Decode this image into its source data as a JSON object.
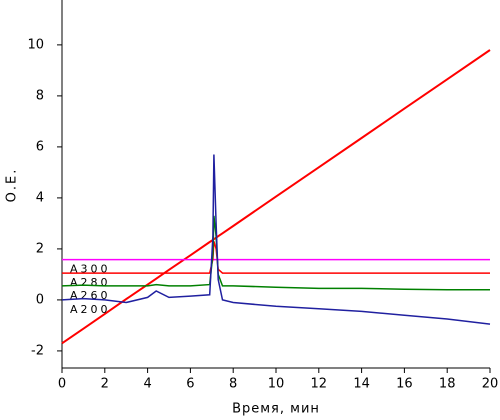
{
  "chart_data": {
    "type": "line",
    "x_label": "Время, мин",
    "y_label": "О.Е.",
    "x": [
      0,
      1,
      2,
      3,
      4,
      4.4,
      5,
      6,
      6.9,
      7.05,
      7.1,
      7.2,
      7.3,
      7.5,
      8,
      10,
      12,
      14,
      16,
      18,
      20
    ],
    "series": [
      {
        "color": "#ff0000",
        "values": [
          -1.7,
          -1.13,
          -0.55,
          0.03,
          0.6,
          0.83,
          1.18,
          1.75,
          2.27,
          2.35,
          2.38,
          2.44,
          2.5,
          2.61,
          2.9,
          4.05,
          5.2,
          6.35,
          7.5,
          8.65,
          9.8
        ]
      },
      {
        "name": "A300",
        "color": "#ff00ff",
        "values": [
          1.58,
          1.58,
          1.58,
          1.58,
          1.58,
          1.58,
          1.58,
          1.58,
          1.58,
          1.58,
          1.58,
          1.58,
          1.58,
          1.58,
          1.58,
          1.58,
          1.58,
          1.58,
          1.58,
          1.58,
          1.58
        ]
      },
      {
        "name": "A280",
        "color": "#ff0000",
        "values": [
          1.05,
          1.05,
          1.05,
          1.05,
          1.05,
          1.05,
          1.05,
          1.05,
          1.05,
          1.6,
          2.3,
          2.0,
          1.2,
          1.05,
          1.05,
          1.05,
          1.05,
          1.05,
          1.05,
          1.05,
          1.05
        ]
      },
      {
        "name": "A260",
        "color": "#008000",
        "values": [
          0.55,
          0.58,
          0.55,
          0.55,
          0.55,
          0.6,
          0.55,
          0.55,
          0.6,
          1.8,
          3.3,
          2.5,
          1.0,
          0.55,
          0.55,
          0.5,
          0.45,
          0.45,
          0.42,
          0.4,
          0.4
        ]
      },
      {
        "name": "A200",
        "color": "#2020a0",
        "values": [
          0.0,
          0.05,
          0.0,
          -0.1,
          0.1,
          0.35,
          0.1,
          0.15,
          0.2,
          2.5,
          5.7,
          3.0,
          0.8,
          0.0,
          -0.1,
          -0.25,
          -0.35,
          -0.45,
          -0.6,
          -0.75,
          -0.95
        ]
      }
    ],
    "xlim": [
      0,
      20
    ],
    "ylim": [
      -2.67,
      11.76
    ],
    "xticks": [
      0,
      2,
      4,
      6,
      8,
      10,
      12,
      14,
      16,
      18,
      20
    ],
    "yticks": [
      -2,
      0,
      2,
      4,
      6,
      8,
      10
    ]
  }
}
